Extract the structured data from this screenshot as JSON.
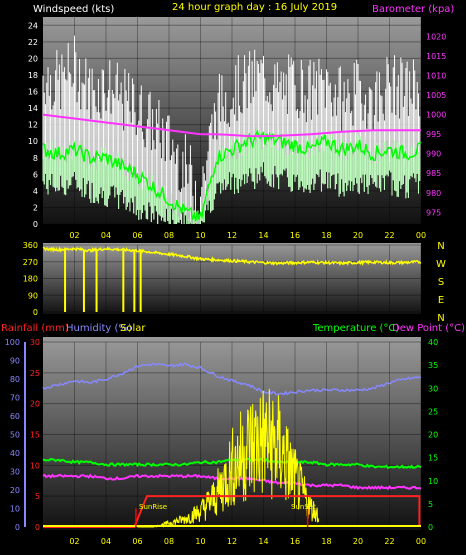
{
  "header": {
    "windspeed_label": "Windspeed (kts)",
    "title": "24 hour graph day : 16 July 2019",
    "barometer_label": "Barometer (kpa)"
  },
  "colors": {
    "wind_max": "#ffffff",
    "wind_avg": "#00ff00",
    "wind_band": "#b8ffb8",
    "barometer": "#ff33ff",
    "direction": "#ffff00",
    "rainfall": "#ff2222",
    "humidity": "#8888ff",
    "solar": "#ffff00",
    "temperature": "#00ff00",
    "dewpoint": "#ff33ff",
    "sunline": "#ff0000"
  },
  "x_hours": [
    "02",
    "04",
    "06",
    "08",
    "10",
    "12",
    "14",
    "16",
    "18",
    "20",
    "22",
    "00"
  ],
  "compass": [
    "N",
    "W",
    "S",
    "E",
    "N"
  ],
  "bottom_labels": {
    "rainfall": "Rainfall (mm)",
    "humidity": "Humidity (%)",
    "solar": "Solar",
    "temperature": "Temperature (°C)",
    "dewpoint": "Dew Point (°C)",
    "sunrise": "SunRise",
    "sunset": "SunSet"
  },
  "chart_data": [
    {
      "type": "line",
      "ylabel": "Windspeed (kts)",
      "ylabel_right": "Barometer (kpa)",
      "xlabel": "",
      "x_ticks": [
        "02",
        "04",
        "06",
        "08",
        "10",
        "12",
        "14",
        "16",
        "18",
        "20",
        "22",
        "00"
      ],
      "ylim": [
        0,
        25
      ],
      "y_ticks": [
        0,
        2,
        4,
        6,
        8,
        10,
        12,
        14,
        16,
        18,
        20,
        22,
        24
      ],
      "y2lim": [
        972,
        1025
      ],
      "y2_ticks": [
        975,
        980,
        985,
        990,
        995,
        1000,
        1005,
        1010,
        1015,
        1020
      ],
      "x": [
        0,
        1,
        2,
        3,
        4,
        5,
        6,
        7,
        8,
        9,
        10,
        11,
        12,
        13,
        14,
        15,
        16,
        17,
        18,
        19,
        20,
        21,
        22,
        23,
        24
      ],
      "series": [
        {
          "name": "max",
          "values": [
            18,
            17,
            19,
            16,
            17,
            15,
            14,
            12,
            10,
            7,
            4,
            14,
            16,
            17,
            18,
            16,
            17,
            16,
            17,
            15,
            16,
            15,
            17,
            16,
            17
          ]
        },
        {
          "name": "avg",
          "values": [
            9,
            8.5,
            9,
            8,
            8,
            7,
            6,
            4.5,
            3,
            1.5,
            0.5,
            8,
            9,
            10,
            10.5,
            10,
            9.5,
            9,
            10,
            9,
            9.5,
            8.5,
            9,
            8.5,
            9
          ]
        },
        {
          "name": "min",
          "values": [
            5,
            4.5,
            5,
            4,
            3.5,
            3,
            2,
            1,
            0.5,
            0,
            0,
            4,
            5,
            5.5,
            6,
            5.5,
            5,
            5,
            5.5,
            4.5,
            5,
            4.5,
            5,
            4.5,
            5
          ]
        },
        {
          "name": "barometer",
          "values": [
            1000,
            999.5,
            999,
            998.5,
            998,
            997.5,
            997,
            996.5,
            996,
            995.5,
            995,
            995,
            994.8,
            994.5,
            994.5,
            994.6,
            994.8,
            995,
            995.3,
            995.6,
            995.8,
            996,
            996,
            996,
            996
          ]
        }
      ]
    },
    {
      "type": "line",
      "ylabel": "",
      "ylim": [
        0,
        360
      ],
      "y_ticks": [
        0,
        90,
        180,
        270,
        360
      ],
      "x": [
        0,
        1,
        2,
        3,
        4,
        5,
        6,
        7,
        8,
        9,
        10,
        11,
        12,
        13,
        14,
        15,
        16,
        17,
        18,
        19,
        20,
        21,
        22,
        23,
        24
      ],
      "series": [
        {
          "name": "direction",
          "values": [
            340,
            335,
            340,
            330,
            340,
            335,
            330,
            320,
            310,
            300,
            285,
            280,
            275,
            270,
            265,
            262,
            265,
            268,
            265,
            262,
            266,
            268,
            265,
            266,
            270
          ]
        }
      ],
      "drops": [
        1.4,
        2.6,
        3.4,
        5.1,
        5.8,
        6.2
      ]
    },
    {
      "type": "line",
      "ylabel": "Rainfall (mm)",
      "ylim": [
        0,
        30
      ],
      "y_ticks": [
        0,
        5,
        10,
        15,
        20,
        25,
        30
      ],
      "y_humidity_ticks": [
        0,
        10,
        20,
        30,
        40,
        50,
        60,
        70,
        80,
        90,
        100
      ],
      "y2lim": [
        0,
        40
      ],
      "y2_ticks": [
        0,
        5,
        10,
        15,
        20,
        25,
        30,
        35,
        40
      ],
      "x": [
        0,
        1,
        2,
        3,
        4,
        5,
        6,
        7,
        8,
        9,
        10,
        11,
        12,
        13,
        14,
        15,
        16,
        17,
        18,
        19,
        20,
        21,
        22,
        23,
        24
      ],
      "series": [
        {
          "name": "humidity",
          "values": [
            75,
            77,
            79,
            78,
            80,
            83,
            87,
            88,
            87,
            88,
            86,
            82,
            79,
            77,
            73,
            72,
            73,
            74,
            74,
            74,
            74,
            75,
            78,
            80,
            81
          ]
        },
        {
          "name": "temperature",
          "values": [
            14.5,
            14.5,
            14,
            14,
            13.5,
            13.5,
            13.5,
            13.5,
            13.5,
            13.5,
            14,
            14,
            14.5,
            14.5,
            14.5,
            14,
            14,
            14,
            13.5,
            13.5,
            13.5,
            13,
            13,
            13,
            13
          ]
        },
        {
          "name": "dewpoint",
          "values": [
            11,
            11,
            11,
            11,
            10.5,
            10.5,
            11,
            11,
            11,
            11,
            11,
            10.5,
            10.5,
            10.5,
            10,
            9.5,
            9.5,
            9,
            9,
            9,
            8.5,
            8.5,
            8.5,
            8.5,
            8.5
          ]
        },
        {
          "name": "rainfall",
          "values": [
            0,
            0,
            0,
            0,
            0,
            0,
            0,
            4,
            5,
            5,
            5,
            5,
            5,
            5,
            5,
            5,
            5,
            5,
            5,
            5,
            5,
            5,
            5,
            5,
            5
          ]
        },
        {
          "name": "solar",
          "values": [
            0,
            0,
            0,
            0,
            0,
            0,
            0,
            0,
            1,
            2,
            4,
            8,
            15,
            20,
            22,
            20,
            12,
            5,
            1,
            0,
            0,
            0,
            0,
            0,
            0
          ]
        }
      ]
    }
  ]
}
